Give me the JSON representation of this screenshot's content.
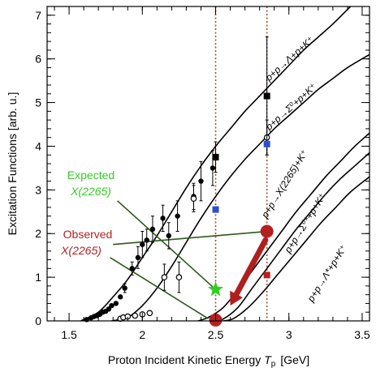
{
  "chart_data": {
    "type": "scatter",
    "xlabel": "Proton Incident Kinetic Energy",
    "xlabel_symbol": "T",
    "xlabel_sub": "p",
    "xlabel_unit": "[GeV]",
    "ylabel": "Excitation Functions  [arb. u.]",
    "xlim": [
      1.35,
      3.55
    ],
    "ylim": [
      0,
      7.2
    ],
    "x_ticks": [
      1.5,
      2,
      2.5,
      3,
      3.5
    ],
    "x_tick_labels": [
      "1.5",
      "2",
      "2.5",
      "3",
      "3.5"
    ],
    "y_ticks": [
      0,
      1,
      2,
      3,
      4,
      5,
      6,
      7
    ],
    "y_tick_labels": [
      "0",
      "1",
      "2",
      "3",
      "4",
      "5",
      "6",
      "7"
    ],
    "vertical_markers": [
      2.5,
      2.85
    ],
    "curves": [
      {
        "label": "p+p→Λ+p+K⁺",
        "threshold": 1.58,
        "points": [
          [
            1.58,
            0
          ],
          [
            1.7,
            0.2
          ],
          [
            1.8,
            0.55
          ],
          [
            1.9,
            0.95
          ],
          [
            2.0,
            1.45
          ],
          [
            2.1,
            1.95
          ],
          [
            2.2,
            2.5
          ],
          [
            2.3,
            3.05
          ],
          [
            2.4,
            3.55
          ],
          [
            2.5,
            4.0
          ],
          [
            2.6,
            4.4
          ],
          [
            2.7,
            4.8
          ],
          [
            2.8,
            5.15
          ],
          [
            2.9,
            5.5
          ],
          [
            3.0,
            5.85
          ],
          [
            3.1,
            6.2
          ],
          [
            3.2,
            6.5
          ],
          [
            3.3,
            6.8
          ],
          [
            3.42,
            7.2
          ]
        ]
      },
      {
        "label": "p+p→Σ⁰+p+K⁺",
        "threshold": 1.79,
        "points": [
          [
            1.79,
            0
          ],
          [
            1.9,
            0.08
          ],
          [
            2.0,
            0.35
          ],
          [
            2.1,
            0.75
          ],
          [
            2.2,
            1.25
          ],
          [
            2.3,
            1.8
          ],
          [
            2.4,
            2.35
          ],
          [
            2.5,
            2.85
          ],
          [
            2.6,
            3.3
          ],
          [
            2.7,
            3.7
          ],
          [
            2.8,
            4.05
          ],
          [
            2.9,
            4.4
          ],
          [
            3.0,
            4.7
          ],
          [
            3.1,
            5.0
          ],
          [
            3.2,
            5.3
          ],
          [
            3.3,
            5.55
          ],
          [
            3.4,
            5.8
          ],
          [
            3.55,
            6.1
          ]
        ]
      },
      {
        "label": "p+p→X(2265)+K⁺",
        "threshold": 2.38,
        "points": [
          [
            2.38,
            0
          ],
          [
            2.45,
            0.08
          ],
          [
            2.55,
            0.3
          ],
          [
            2.65,
            0.7
          ],
          [
            2.75,
            1.15
          ],
          [
            2.85,
            1.6
          ],
          [
            2.95,
            2.05
          ],
          [
            3.05,
            2.5
          ],
          [
            3.15,
            2.9
          ],
          [
            3.25,
            3.3
          ],
          [
            3.35,
            3.65
          ],
          [
            3.45,
            4.0
          ],
          [
            3.55,
            4.3
          ]
        ]
      },
      {
        "label": "p+p→Σ⁰*+p+K⁺",
        "threshold": 2.49,
        "points": [
          [
            2.49,
            0
          ],
          [
            2.55,
            0.04
          ],
          [
            2.65,
            0.3
          ],
          [
            2.75,
            0.75
          ],
          [
            2.85,
            1.2
          ],
          [
            2.95,
            1.65
          ],
          [
            3.05,
            2.1
          ],
          [
            3.15,
            2.5
          ],
          [
            3.25,
            2.9
          ],
          [
            3.35,
            3.25
          ],
          [
            3.45,
            3.55
          ],
          [
            3.55,
            3.85
          ]
        ]
      },
      {
        "label": "p+p→Λ*+p+K⁺",
        "threshold": 2.55,
        "points": [
          [
            2.55,
            0
          ],
          [
            2.62,
            0.05
          ],
          [
            2.72,
            0.3
          ],
          [
            2.82,
            0.65
          ],
          [
            2.92,
            1.05
          ],
          [
            3.02,
            1.45
          ],
          [
            3.12,
            1.85
          ],
          [
            3.22,
            2.25
          ],
          [
            3.32,
            2.6
          ],
          [
            3.42,
            2.95
          ],
          [
            3.55,
            3.3
          ]
        ]
      }
    ],
    "series_filled_circles": [
      {
        "x": 1.62,
        "y": 0.03
      },
      {
        "x": 1.65,
        "y": 0.07
      },
      {
        "x": 1.67,
        "y": 0.1
      },
      {
        "x": 1.69,
        "y": 0.12
      },
      {
        "x": 1.71,
        "y": 0.15
      },
      {
        "x": 1.73,
        "y": 0.2
      },
      {
        "x": 1.75,
        "y": 0.22
      },
      {
        "x": 1.77,
        "y": 0.27
      },
      {
        "x": 1.79,
        "y": 0.35
      },
      {
        "x": 1.82,
        "y": 0.4
      },
      {
        "x": 1.85,
        "y": 0.55
      },
      {
        "x": 1.88,
        "y": 0.75,
        "err": 0.1
      },
      {
        "x": 1.93,
        "y": 1.2,
        "err": 0.15
      },
      {
        "x": 1.97,
        "y": 1.45,
        "err": 0.25
      },
      {
        "x": 2.0,
        "y": 1.75,
        "err": 0.3
      },
      {
        "x": 2.03,
        "y": 1.85,
        "err": 0.25
      },
      {
        "x": 2.07,
        "y": 2.1,
        "err": 0.3
      },
      {
        "x": 2.14,
        "y": 2.35,
        "err": 0.3
      },
      {
        "x": 2.18,
        "y": 1.95,
        "err": 0.3
      },
      {
        "x": 2.24,
        "y": 2.4,
        "err": 0.35
      },
      {
        "x": 2.35,
        "y": 2.85,
        "err": 0.3
      },
      {
        "x": 2.4,
        "y": 3.2,
        "err": 0.45
      },
      {
        "x": 2.48,
        "y": 3.5,
        "err": 0.4
      }
    ],
    "series_open_circles": [
      {
        "x": 1.85,
        "y": 0.05
      },
      {
        "x": 1.87,
        "y": 0.08
      },
      {
        "x": 1.9,
        "y": 0.1
      },
      {
        "x": 1.95,
        "y": 0.12
      },
      {
        "x": 2.0,
        "y": 0.15
      },
      {
        "x": 2.05,
        "y": 0.18
      },
      {
        "x": 2.15,
        "y": 1.0,
        "err": 0.3
      },
      {
        "x": 2.25,
        "y": 1.0,
        "err": 0.35
      },
      {
        "x": 2.35,
        "y": 2.8,
        "err": 0.3
      },
      {
        "x": 2.85,
        "y": 4.2,
        "err": 0.4
      }
    ],
    "series_black_squares": [
      {
        "x": 2.5,
        "y": 3.75,
        "err": 0.35
      },
      {
        "x": 2.85,
        "y": 5.15,
        "err": 1.35
      }
    ],
    "series_blue_squares": [
      {
        "x": 2.5,
        "y": 2.55
      },
      {
        "x": 2.85,
        "y": 4.05
      }
    ],
    "series_red_squares": [
      {
        "x": 2.85,
        "y": 1.05
      }
    ],
    "red_circles": [
      {
        "x": 2.85,
        "y": 2.05
      },
      {
        "x": 2.5,
        "y": 0.02
      }
    ],
    "green_star": {
      "x": 2.5,
      "y": 0.72
    },
    "annotation_expected": {
      "line1": "Expected",
      "line2": "X(2265)"
    },
    "annotation_observed": {
      "line1": "Observed",
      "line2": "X(2265)"
    },
    "annotation_lines": [
      {
        "from": [
          1.83,
          2.75
        ],
        "to": [
          2.5,
          0.72
        ],
        "color": "#2d5a1a"
      },
      {
        "from": [
          1.78,
          1.45
        ],
        "to": [
          2.45,
          0.05
        ],
        "color": "#2d5a1a"
      },
      {
        "from": [
          1.8,
          1.75
        ],
        "to": [
          2.85,
          2.05
        ],
        "color": "#2d5a1a"
      }
    ],
    "arrow": {
      "from": [
        2.84,
        1.85
      ],
      "to": [
        2.6,
        0.35
      ],
      "color": "#b01e1e"
    },
    "colors": {
      "axis": "#000000",
      "curve": "#000000",
      "marker_vline": "#a0522d",
      "green": "#33cc22",
      "dark_green": "#2d5a1a",
      "red": "#b42020",
      "blue": "#2a4fd1"
    }
  }
}
